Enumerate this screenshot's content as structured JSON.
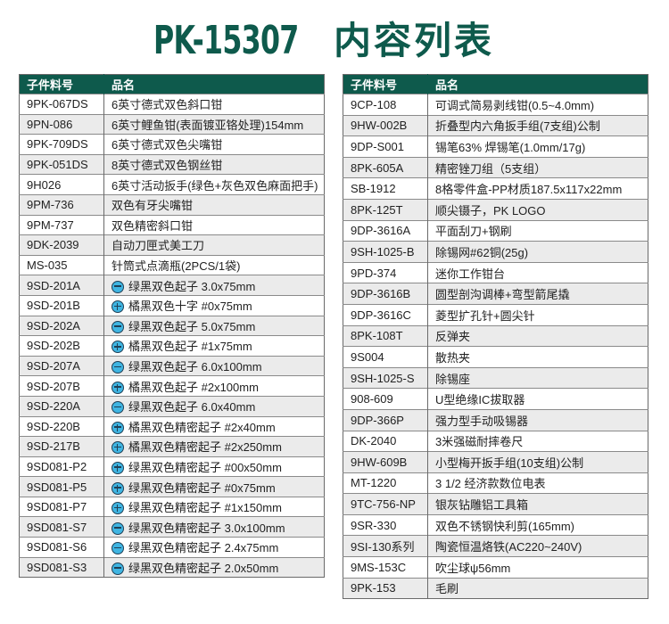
{
  "title": {
    "code": "PK-15307",
    "text": "内容列表"
  },
  "colors": {
    "header": "#0e5a4c",
    "title": "#0e5a4c",
    "icon_fill": "#3fb5e2",
    "row_alt": "#ebebeb"
  },
  "columns": {
    "part_no": "子件料号",
    "name": "品名"
  },
  "left_rows": [
    {
      "part": "9PK-067DS",
      "name": "6英寸德式双色斜口钳"
    },
    {
      "part": "9PN-086",
      "name": "6英寸鲤鱼钳(表面镀亚铬处理)154mm"
    },
    {
      "part": "9PK-709DS",
      "name": "6英寸德式双色尖嘴钳"
    },
    {
      "part": "9PK-051DS",
      "name": "8英寸德式双色钢丝钳"
    },
    {
      "part": "9H026",
      "name": "6英寸活动扳手(绿色+灰色双色麻面把手)"
    },
    {
      "part": "9PM-736",
      "name": "双色有牙尖嘴钳"
    },
    {
      "part": "9PM-737",
      "name": "双色精密斜口钳"
    },
    {
      "part": "9DK-2039",
      "name": "自动刀匣式美工刀"
    },
    {
      "part": "MS-035",
      "name": "针筒式点滴瓶(2PCS/1袋)"
    },
    {
      "part": "9SD-201A",
      "name": "绿黑双色起子 3.0x75mm",
      "icon": "slotted-minus-icon"
    },
    {
      "part": "9SD-201B",
      "name": "橘黑双色十字 #0x75mm",
      "icon": "phillips-plus-icon"
    },
    {
      "part": "9SD-202A",
      "name": "绿黑双色起子 5.0x75mm",
      "icon": "slotted-minus-icon"
    },
    {
      "part": "9SD-202B",
      "name": "橘黑双色起子 #1x75mm",
      "icon": "phillips-plus-icon"
    },
    {
      "part": "9SD-207A",
      "name": "绿黑双色起子 6.0x100mm",
      "icon": "slotted-minus-icon"
    },
    {
      "part": "9SD-207B",
      "name": "橘黑双色起子 #2x100mm",
      "icon": "phillips-plus-icon"
    },
    {
      "part": "9SD-220A",
      "name": "绿黑双色起子 6.0x40mm",
      "icon": "slotted-minus-icon"
    },
    {
      "part": "9SD-220B",
      "name": "橘黑双色精密起子 #2x40mm",
      "icon": "phillips-plus-icon"
    },
    {
      "part": "9SD-217B",
      "name": "橘黑双色精密起子 #2x250mm",
      "icon": "phillips-plus-icon"
    },
    {
      "part": "9SD081-P2",
      "name": "绿黑双色精密起子 #00x50mm",
      "icon": "phillips-plus-icon"
    },
    {
      "part": "9SD081-P5",
      "name": "绿黑双色精密起子 #0x75mm",
      "icon": "phillips-plus-icon"
    },
    {
      "part": "9SD081-P7",
      "name": "绿黑双色精密起子 #1x150mm",
      "icon": "phillips-plus-icon"
    },
    {
      "part": "9SD081-S7",
      "name": "绿黑双色精密起子 3.0x100mm",
      "icon": "slotted-minus-icon"
    },
    {
      "part": "9SD081-S6",
      "name": "绿黑双色精密起子 2.4x75mm",
      "icon": "slotted-minus-icon"
    },
    {
      "part": "9SD081-S3",
      "name": "绿黑双色精密起子 2.0x50mm",
      "icon": "slotted-minus-icon"
    }
  ],
  "right_rows": [
    {
      "part": "9CP-108",
      "name": "可调式简易剥线钳(0.5~4.0mm)"
    },
    {
      "part": "9HW-002B",
      "name": "折叠型内六角扳手组(7支组)公制"
    },
    {
      "part": "9DP-S001",
      "name": "锡笔63% 焊锡笔(1.0mm/17g)"
    },
    {
      "part": "8PK-605A",
      "name": "精密锉刀组（5支组）"
    },
    {
      "part": "SB-1912",
      "name": "8格零件盒-PP材质187.5x117x22mm"
    },
    {
      "part": "8PK-125T",
      "name": "顺尖镊子，PK LOGO"
    },
    {
      "part": "9DP-3616A",
      "name": "平面刮刀+钢刷"
    },
    {
      "part": "9SH-1025-B",
      "name": "除锡网#62铜(25g)"
    },
    {
      "part": "9PD-374",
      "name": "迷你工作钳台"
    },
    {
      "part": "9DP-3616B",
      "name": "圆型剖沟调棒+弯型箭尾撬"
    },
    {
      "part": "9DP-3616C",
      "name": "菱型扩孔针+圆尖针"
    },
    {
      "part": "8PK-108T",
      "name": "反弹夹"
    },
    {
      "part": "9S004",
      "name": "散热夹"
    },
    {
      "part": "9SH-1025-S",
      "name": "除锡座"
    },
    {
      "part": "908-609",
      "name": "U型绝缘IC拔取器"
    },
    {
      "part": "9DP-366P",
      "name": "强力型手动吸锡器"
    },
    {
      "part": "DK-2040",
      "name": "3米强磁耐摔卷尺"
    },
    {
      "part": "9HW-609B",
      "name": "小型梅开扳手组(10支组)公制"
    },
    {
      "part": "MT-1220",
      "name": "3 1/2 经济款数位电表"
    },
    {
      "part": "9TC-756-NP",
      "name": "银灰钻雕铝工具箱"
    },
    {
      "part": "9SR-330",
      "name": "双色不锈钢快利剪(165mm)"
    },
    {
      "part": "9SI-130系列",
      "name": "陶瓷恒温烙铁(AC220~240V)"
    },
    {
      "part": "9MS-153C",
      "name": "吹尘球ψ56mm"
    },
    {
      "part": "9PK-153",
      "name": "毛刷"
    }
  ]
}
